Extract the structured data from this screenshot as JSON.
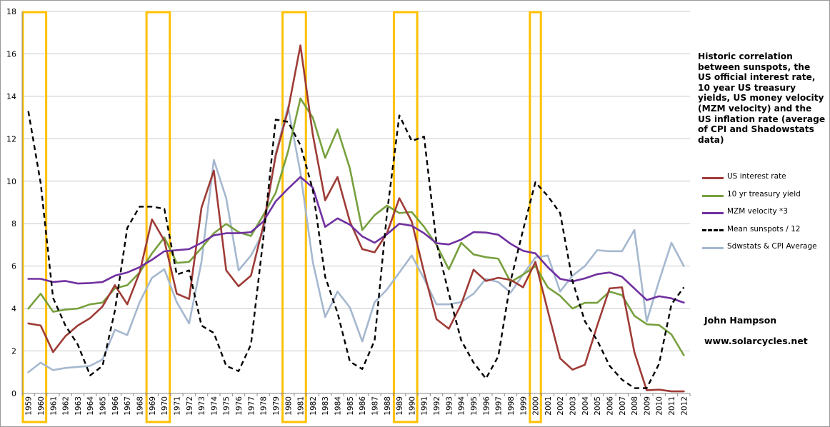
{
  "description": "Historic correlation between sunspots, the US official interest rate, 10 year US treasury yields, US money velocity (MZM velocity) and the US inflation rate (average of CPI and Shadowstats data)",
  "author": "John Hampson",
  "website": "www.solarcycles.net",
  "colors": {
    "interest": "#9E3B36",
    "treasury": "#77A03E",
    "mzm": "#7030A0",
    "sunspots": "#000000",
    "inflation": "#A5B8CF",
    "highlight": "#FFC000",
    "grid": "#C8C8C8"
  },
  "chart_data": {
    "type": "line",
    "title": "",
    "xlabel": "",
    "ylabel": "",
    "ylim": [
      0,
      18
    ],
    "yticks": [
      "0",
      "2",
      "4",
      "6",
      "8",
      "10",
      "12",
      "14",
      "16",
      "18"
    ],
    "grid": "horizontal",
    "legend_position": "right",
    "categories": [
      "1959",
      "1960",
      "1961",
      "1962",
      "1963",
      "1964",
      "1965",
      "1966",
      "1967",
      "1968",
      "1969",
      "1970",
      "1971",
      "1972",
      "1973",
      "1974",
      "1975",
      "1976",
      "1977",
      "1978",
      "1979",
      "1980",
      "1981",
      "1982",
      "1983",
      "1984",
      "1985",
      "1986",
      "1987",
      "1988",
      "1989",
      "1990",
      "1991",
      "1992",
      "1993",
      "1994",
      "1995",
      "1996",
      "1997",
      "1998",
      "1999",
      "2000",
      "2001",
      "2002",
      "2003",
      "2004",
      "2005",
      "2006",
      "2007",
      "2008",
      "2009",
      "2010",
      "2011",
      "2012"
    ],
    "highlight_years": [
      [
        "1959",
        "1960"
      ],
      [
        "1969",
        "1970"
      ],
      [
        "1980",
        "1981"
      ],
      [
        "1989",
        "1990"
      ],
      [
        "2000",
        "2000"
      ]
    ],
    "series": [
      {
        "name": "US interest rate",
        "key": "interest",
        "style": "solid",
        "values": [
          3.3,
          3.2,
          1.95,
          2.7,
          3.2,
          3.55,
          4.1,
          5.1,
          4.2,
          5.7,
          8.2,
          7.2,
          4.7,
          4.45,
          8.75,
          10.5,
          5.8,
          5.05,
          5.55,
          7.9,
          11.2,
          13.35,
          16.4,
          12.2,
          9.1,
          10.2,
          8.1,
          6.8,
          6.65,
          7.55,
          9.2,
          8.1,
          5.7,
          3.5,
          3.05,
          4.2,
          5.83,
          5.3,
          5.45,
          5.35,
          5.0,
          6.2,
          3.9,
          1.65,
          1.12,
          1.35,
          3.2,
          4.95,
          5.0,
          1.95,
          0.15,
          0.18,
          0.1,
          0.1
        ]
      },
      {
        "name": "10 yr treasury yield",
        "key": "treasury",
        "style": "solid",
        "values": [
          4.0,
          4.7,
          3.85,
          3.95,
          4.0,
          4.2,
          4.28,
          4.95,
          5.1,
          5.7,
          6.6,
          7.35,
          6.15,
          6.2,
          6.85,
          7.55,
          7.99,
          7.6,
          7.42,
          8.4,
          9.45,
          11.4,
          13.9,
          13.0,
          11.1,
          12.45,
          10.6,
          7.7,
          8.4,
          8.85,
          8.5,
          8.55,
          7.85,
          7.0,
          5.85,
          7.1,
          6.55,
          6.42,
          6.35,
          5.25,
          5.6,
          6.0,
          5.0,
          4.6,
          4.0,
          4.27,
          4.27,
          4.8,
          4.63,
          3.66,
          3.26,
          3.22,
          2.78,
          1.8
        ]
      },
      {
        "name": "MZM velocity *3",
        "key": "mzm",
        "style": "solid",
        "values": [
          5.4,
          5.4,
          5.25,
          5.3,
          5.18,
          5.2,
          5.25,
          5.55,
          5.7,
          5.95,
          6.3,
          6.7,
          6.75,
          6.8,
          7.1,
          7.45,
          7.55,
          7.55,
          7.6,
          8.1,
          9.05,
          9.65,
          10.2,
          9.7,
          7.85,
          8.25,
          7.95,
          7.4,
          7.1,
          7.5,
          8.0,
          7.9,
          7.55,
          7.08,
          7.02,
          7.25,
          7.6,
          7.58,
          7.48,
          7.05,
          6.72,
          6.6,
          5.95,
          5.4,
          5.28,
          5.42,
          5.62,
          5.7,
          5.5,
          4.95,
          4.4,
          4.58,
          4.48,
          4.28
        ]
      },
      {
        "name": "Mean sunspots  / 12",
        "key": "sunspots",
        "style": "dashed",
        "values": [
          13.3,
          9.9,
          4.5,
          3.2,
          2.3,
          0.85,
          1.3,
          3.9,
          7.8,
          8.8,
          8.8,
          8.7,
          5.6,
          5.8,
          3.2,
          2.85,
          1.3,
          1.05,
          2.3,
          7.3,
          12.9,
          12.8,
          11.7,
          9.6,
          5.5,
          3.8,
          1.5,
          1.15,
          2.5,
          8.5,
          13.1,
          11.9,
          12.1,
          7.1,
          4.7,
          2.5,
          1.45,
          0.7,
          1.75,
          5.3,
          7.7,
          9.95,
          9.3,
          8.5,
          5.3,
          3.4,
          2.5,
          1.3,
          0.65,
          0.25,
          0.25,
          1.4,
          4.2,
          5.0
        ]
      },
      {
        "name": "Sdwstats & CPI Average",
        "key": "inflation",
        "style": "solid",
        "values": [
          1.0,
          1.45,
          1.1,
          1.2,
          1.25,
          1.3,
          1.6,
          3.0,
          2.75,
          4.3,
          5.45,
          5.85,
          4.3,
          3.3,
          6.2,
          11.0,
          9.2,
          5.8,
          6.5,
          7.6,
          11.3,
          13.5,
          10.4,
          6.2,
          3.6,
          4.8,
          4.05,
          2.45,
          4.3,
          4.9,
          5.7,
          6.5,
          5.4,
          4.2,
          4.2,
          4.3,
          4.7,
          5.4,
          5.25,
          4.75,
          5.6,
          6.4,
          6.5,
          4.8,
          5.55,
          6.0,
          6.75,
          6.7,
          6.7,
          7.7,
          3.4,
          5.3,
          7.1,
          6.0
        ]
      }
    ]
  }
}
